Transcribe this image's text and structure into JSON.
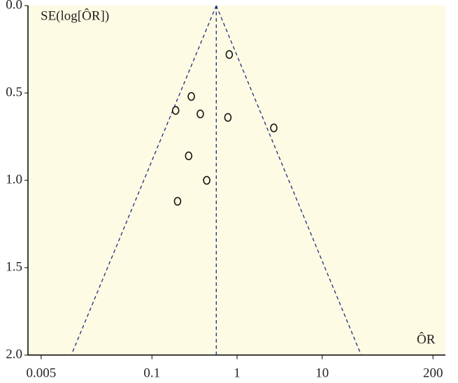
{
  "chart_data": {
    "type": "scatter",
    "y_label": "SE(log[ÔR])",
    "x_label": "ÔR",
    "x": [
      0.81,
      0.29,
      0.19,
      0.37,
      0.78,
      2.7,
      0.27,
      0.44,
      0.2
    ],
    "values": [
      0.28,
      0.52,
      0.6,
      0.62,
      0.64,
      0.7,
      0.86,
      1.0,
      1.12
    ],
    "xlim": [
      0.0035,
      280
    ],
    "xscale": "log",
    "xticks": [
      0.005,
      0.1,
      1,
      10,
      200
    ],
    "ylim": [
      0,
      2
    ],
    "y_inverted": true,
    "yticks": [
      {
        "value": 0,
        "label": "0.0"
      },
      {
        "value": 0.5,
        "label": "0.5"
      },
      {
        "value": 1,
        "label": "1.0"
      },
      {
        "value": 1.5,
        "label": "1.5"
      },
      {
        "value": 2,
        "label": "2.0"
      }
    ],
    "pooled_or": 0.57,
    "funnel": {
      "se": [
        0,
        2
      ],
      "left": [
        0.57,
        0.0113
      ],
      "right": [
        0.57,
        28.7
      ]
    },
    "color": "#1f2a80",
    "background": "#fdfbe3"
  }
}
